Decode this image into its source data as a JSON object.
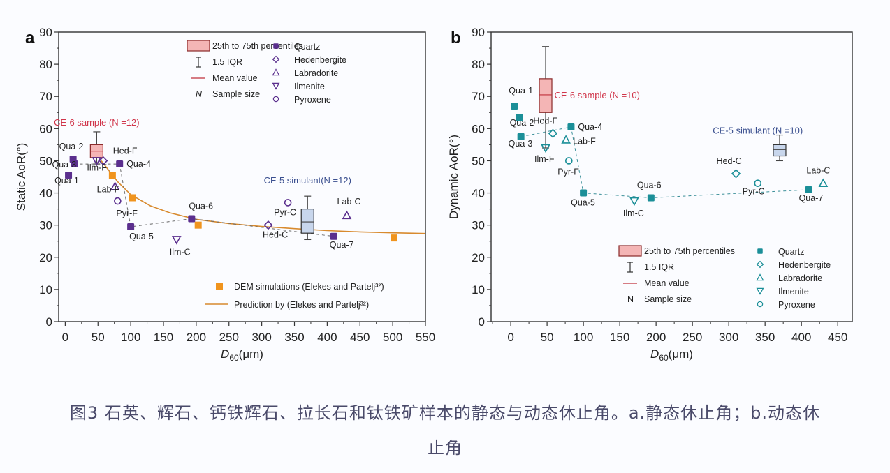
{
  "caption": {
    "line1": "图3 石英、辉石、钙铁辉石、拉长石和钛铁矿样本的静态与动态休止角。a.静态休止角；b.动态休",
    "line2": "止角"
  },
  "chart_data": [
    {
      "panel": "a",
      "type": "scatter",
      "title": "",
      "xlabel": "D60(μm)",
      "ylabel": "Static AoR(°)",
      "xlim": [
        -10,
        550
      ],
      "ylim": [
        0,
        90
      ],
      "xticks": [
        0,
        50,
        100,
        150,
        200,
        250,
        300,
        350,
        400,
        450,
        500,
        550
      ],
      "yticks": [
        0,
        10,
        20,
        30,
        40,
        50,
        60,
        70,
        80,
        90
      ],
      "grid": false,
      "colors": {
        "mineral": "#5b2f8e",
        "dem": "#f0941e",
        "prediction": "#d88a2e",
        "ce6_box": "#f4b5b5",
        "ce6_edge": "#8a2a2a",
        "ce6_text": "#d0354a",
        "ce5_box": "#c8d6ec",
        "ce5_text": "#3a4f8f"
      },
      "points": [
        {
          "label": "Qua-1",
          "mineral": "Quartz",
          "x": 5,
          "y": 45.5
        },
        {
          "label": "Qua-2",
          "mineral": "Quartz",
          "x": 12,
          "y": 50.5
        },
        {
          "label": "Qua-3",
          "mineral": "Quartz",
          "x": 14,
          "y": 49
        },
        {
          "label": "Qua-4",
          "mineral": "Quartz",
          "x": 83,
          "y": 49
        },
        {
          "label": "Qua-5",
          "mineral": "Quartz",
          "x": 100,
          "y": 29.5
        },
        {
          "label": "Qua-6",
          "mineral": "Quartz",
          "x": 193,
          "y": 32
        },
        {
          "label": "Qua-7",
          "mineral": "Quartz",
          "x": 410,
          "y": 26.5
        },
        {
          "label": "Hed-F",
          "mineral": "Hedenbergite",
          "x": 58,
          "y": 50
        },
        {
          "label": "Hed-C",
          "mineral": "Hedenbergite",
          "x": 310,
          "y": 30
        },
        {
          "label": "Lab-F",
          "mineral": "Labradorite",
          "x": 76,
          "y": 42
        },
        {
          "label": "Lab-C",
          "mineral": "Labradorite",
          "x": 430,
          "y": 33
        },
        {
          "label": "Ilm-F",
          "mineral": "Ilmenite",
          "x": 48,
          "y": 50
        },
        {
          "label": "Ilm-C",
          "mineral": "Ilmenite",
          "x": 170,
          "y": 25.5
        },
        {
          "label": "Pyr-F",
          "mineral": "Pyroxene",
          "x": 80,
          "y": 37.5
        },
        {
          "label": "Pyr-C",
          "mineral": "Pyroxene",
          "x": 340,
          "y": 37
        }
      ],
      "quartz_path": [
        "Qua-3",
        "Qua-4",
        "Qua-5",
        "Qua-6",
        "Qua-7"
      ],
      "dem_simulations": [
        {
          "x": 72,
          "y": 45.5
        },
        {
          "x": 103,
          "y": 38.5
        },
        {
          "x": 203,
          "y": 30
        },
        {
          "x": 502,
          "y": 26
        }
      ],
      "prediction_curve": [
        [
          55,
          50
        ],
        [
          80,
          43.5
        ],
        [
          100,
          39.5
        ],
        [
          130,
          36
        ],
        [
          160,
          33.8
        ],
        [
          200,
          31.8
        ],
        [
          250,
          30.5
        ],
        [
          300,
          29.6
        ],
        [
          350,
          28.9
        ],
        [
          400,
          28.3
        ],
        [
          450,
          27.9
        ],
        [
          500,
          27.6
        ],
        [
          550,
          27.4
        ]
      ],
      "boxes": [
        {
          "name": "CE-6 sample",
          "n": 12,
          "label": "CE-6 sample (N =12)",
          "x": 48,
          "q1": 51,
          "q3": 55,
          "mean": 53,
          "median": 52.5,
          "whisker_low": 49,
          "whisker_high": 59,
          "style": "ce6"
        },
        {
          "name": "CE-5 simulant",
          "n": 12,
          "label": "CE-5 simulant(N =12)",
          "x": 370,
          "q1": 27.5,
          "q3": 35,
          "mean": 31,
          "median": 31,
          "whisker_low": 25.5,
          "whisker_high": 39,
          "style": "ce5"
        }
      ],
      "legend_box": [
        "25th to 75th percentiles",
        "1.5 IQR",
        "Mean value",
        "Sample size"
      ],
      "legend_n_symbol": "N",
      "legend_minerals": [
        "Quartz",
        "Hedenbergite",
        "Labradorite",
        "Ilmenite",
        "Pyroxene"
      ],
      "legend_models": [
        "DEM simulations (Elekes and Partelj³²)",
        "Prediction by (Elekes and Partelj³²)"
      ]
    },
    {
      "panel": "b",
      "type": "scatter",
      "title": "",
      "xlabel": "D60(μm)",
      "ylabel": "Dynamic AoR(°)",
      "xlim": [
        -27,
        470
      ],
      "ylim": [
        0,
        90
      ],
      "xticks": [
        0,
        50,
        100,
        150,
        200,
        250,
        300,
        350,
        400,
        450
      ],
      "yticks": [
        0,
        10,
        20,
        30,
        40,
        50,
        60,
        70,
        80,
        90
      ],
      "grid": false,
      "colors": {
        "mineral": "#1b8f98",
        "ce6_box": "#f4b5b5",
        "ce6_edge": "#8a2a2a",
        "ce6_text": "#d0354a",
        "ce5_box": "#c8d6ec",
        "ce5_text": "#3a4f8f"
      },
      "points": [
        {
          "label": "Qua-1",
          "mineral": "Quartz",
          "x": 5,
          "y": 67
        },
        {
          "label": "Qua-2",
          "mineral": "Quartz",
          "x": 12,
          "y": 63.5
        },
        {
          "label": "Qua-3",
          "mineral": "Quartz",
          "x": 14,
          "y": 57.5
        },
        {
          "label": "Qua-4",
          "mineral": "Quartz",
          "x": 83,
          "y": 60.5
        },
        {
          "label": "Qua-5",
          "mineral": "Quartz",
          "x": 100,
          "y": 40
        },
        {
          "label": "Qua-6",
          "mineral": "Quartz",
          "x": 193,
          "y": 38.5
        },
        {
          "label": "Qua-7",
          "mineral": "Quartz",
          "x": 410,
          "y": 41
        },
        {
          "label": "Hed-F",
          "mineral": "Hedenbergite",
          "x": 58,
          "y": 58.5
        },
        {
          "label": "Hed-C",
          "mineral": "Hedenbergite",
          "x": 310,
          "y": 46
        },
        {
          "label": "Lab-F",
          "mineral": "Labradorite",
          "x": 76,
          "y": 56.5
        },
        {
          "label": "Lab-C",
          "mineral": "Labradorite",
          "x": 430,
          "y": 43
        },
        {
          "label": "Ilm-F",
          "mineral": "Ilmenite",
          "x": 48,
          "y": 54
        },
        {
          "label": "Ilm-C",
          "mineral": "Ilmenite",
          "x": 170,
          "y": 37.5
        },
        {
          "label": "Pyr-F",
          "mineral": "Pyroxene",
          "x": 80,
          "y": 50
        },
        {
          "label": "Pyr-C",
          "mineral": "Pyroxene",
          "x": 340,
          "y": 43
        }
      ],
      "quartz_path": [
        "Qua-3",
        "Qua-4",
        "Qua-5",
        "Qua-6",
        "Qua-7"
      ],
      "boxes": [
        {
          "name": "CE-6 sample",
          "n": 10,
          "label": "CE-6 sample (N =10)",
          "x": 48,
          "q1": 65,
          "q3": 75.5,
          "mean": 70.5,
          "median": 70.5,
          "whisker_low": 54,
          "whisker_high": 85.5,
          "style": "ce6"
        },
        {
          "name": "CE-5 simulant",
          "n": 10,
          "label": "CE-5 simulant (N =10)",
          "x": 370,
          "q1": 51.5,
          "q3": 55,
          "mean": 53.5,
          "median": 53.5,
          "whisker_low": 50,
          "whisker_high": 58,
          "style": "ce5"
        }
      ],
      "legend_box": [
        "25th to 75th percentiles",
        "1.5 IQR",
        "Mean value",
        "Sample size"
      ],
      "legend_n_symbol": "N",
      "legend_minerals": [
        "Quartz",
        "Hedenbergite",
        "Labradorite",
        "Ilmenite",
        "Pyroxene"
      ]
    }
  ]
}
